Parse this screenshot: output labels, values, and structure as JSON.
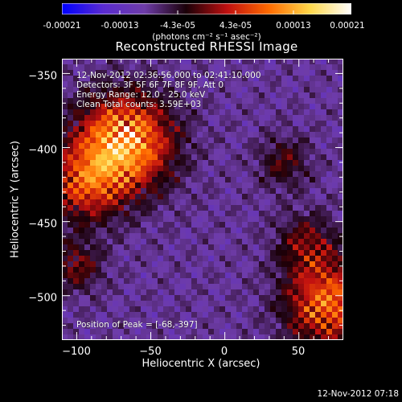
{
  "colorbar": {
    "ticks": [
      "-0.00021",
      "-0.00013",
      "-4.3e-05",
      "4.3e-05",
      "0.00013",
      "0.00021"
    ],
    "units": "(photons cm⁻² s⁻¹ asec⁻²)",
    "colormap": [
      "#0000ff",
      "#5a2bd0",
      "#6e3ca8",
      "#1a0008",
      "#c01010",
      "#ff6a00",
      "#ffd84a",
      "#ffffff"
    ]
  },
  "annotations": {
    "time_range": "12-Nov-2012 02:36:56.000 to 02:41:10.000",
    "detectors": "Detectors: 3F 5F 6F 7F 8F 9F, Att 0",
    "energy": "Energy Range: 12.0 - 25.0 keV",
    "clean": "Clean    Total counts: 3.59E+03",
    "peak": "Position of Peak = [-68,-397]"
  },
  "timestamp": "12-Nov-2012 07:18",
  "chart_data": {
    "type": "heatmap",
    "title": "Reconstructed RHESSI Image",
    "xlabel": "Heliocentric X (arcsec)",
    "ylabel": "Heliocentric Y (arcsec)",
    "xlim": [
      -110,
      80
    ],
    "ylim": [
      -530,
      -340
    ],
    "xticks": [
      -100,
      -50,
      0,
      50
    ],
    "yticks": [
      -350,
      -400,
      -450,
      -500
    ],
    "xtick_labels": [
      "−100",
      "−50",
      "0",
      "50"
    ],
    "ytick_labels": [
      "−350",
      "−400",
      "−450",
      "−500"
    ],
    "value_range": [
      -0.00021,
      0.00021
    ],
    "peak_position": [
      -68,
      -397
    ],
    "sources": [
      {
        "x": -68,
        "y": -397,
        "amp": 1.0,
        "sigma": 22
      },
      {
        "x": -95,
        "y": -425,
        "amp": 0.55,
        "sigma": 18
      },
      {
        "x": 70,
        "y": -505,
        "amp": 0.75,
        "sigma": 20
      },
      {
        "x": 55,
        "y": -465,
        "amp": 0.35,
        "sigma": 14
      },
      {
        "x": 40,
        "y": -410,
        "amp": 0.3,
        "sigma": 12
      },
      {
        "x": -100,
        "y": -480,
        "amp": 0.35,
        "sigma": 12
      }
    ]
  }
}
